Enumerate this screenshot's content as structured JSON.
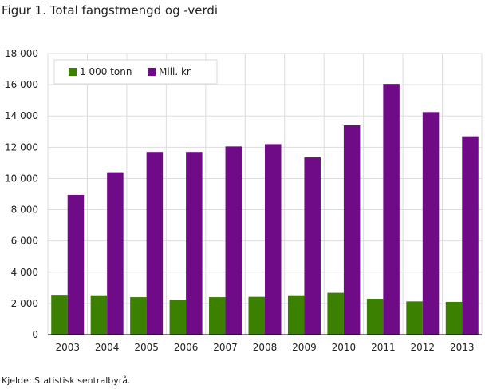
{
  "title": "Figur 1. Total fangstmengd og -verdi",
  "source": "Kjelde: Statistisk sentralbyrå.",
  "colors": {
    "tonn": "#3b8000",
    "kr": "#6f0b86",
    "grid": "#dddddd"
  },
  "chart_data": {
    "type": "bar",
    "title": "Figur 1. Total fangstmengd og -verdi",
    "categories": [
      "2003",
      "2004",
      "2005",
      "2006",
      "2007",
      "2008",
      "2009",
      "2010",
      "2011",
      "2012",
      "2013"
    ],
    "series": [
      {
        "name": "1 000 tonn",
        "values": [
          2550,
          2520,
          2400,
          2250,
          2400,
          2420,
          2520,
          2680,
          2300,
          2130,
          2100
        ]
      },
      {
        "name": "Mill. kr",
        "values": [
          8950,
          10400,
          11700,
          11700,
          12050,
          12200,
          11350,
          13400,
          16050,
          14250,
          12700
        ]
      }
    ],
    "ylim": [
      0,
      18000
    ],
    "yticks": [
      "0",
      "2 000",
      "4 000",
      "6 000",
      "8 000",
      "10 000",
      "12 000",
      "14 000",
      "16 000",
      "18 000"
    ],
    "legend_position": "top-left",
    "grid": true
  }
}
